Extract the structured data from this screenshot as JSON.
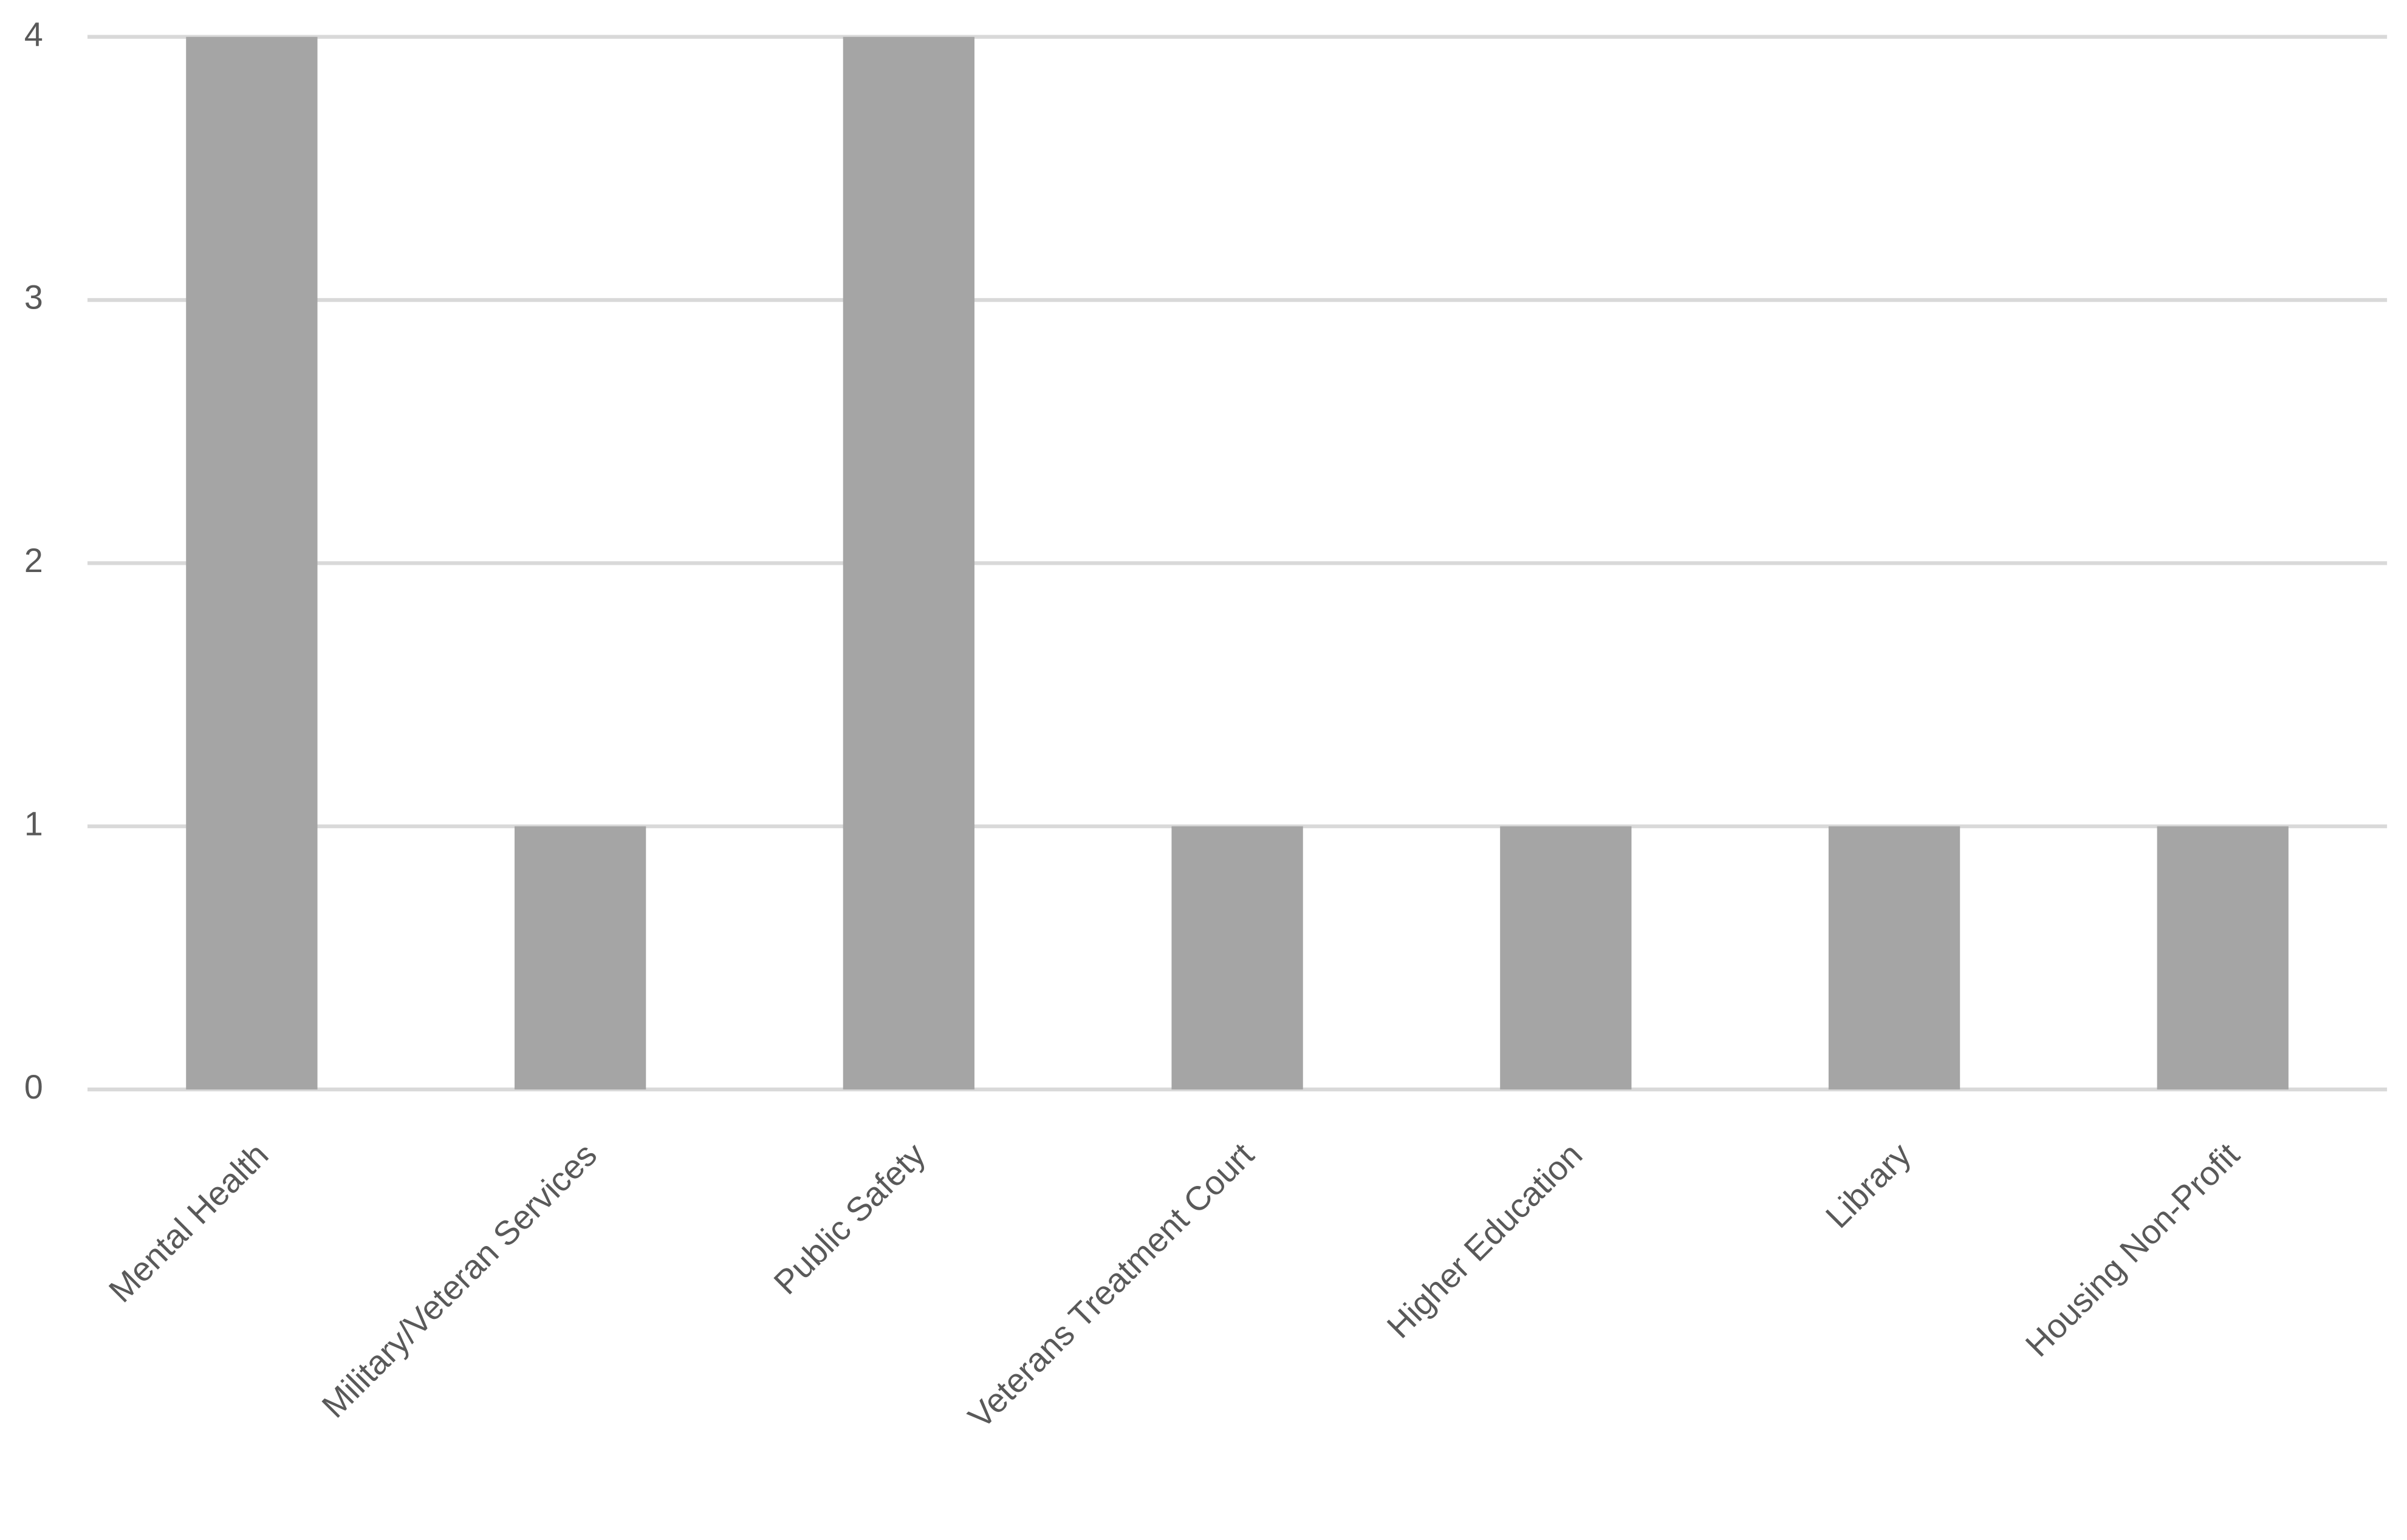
{
  "chart_data": {
    "type": "bar",
    "categories": [
      "Mental Health",
      "Military/Veteran Services",
      "Public Safety",
      "Veterans Treatment Court",
      "Higher Education",
      "Library",
      "Housing Non-Profit"
    ],
    "values": [
      4,
      1,
      4,
      1,
      1,
      1,
      1
    ],
    "color": "#a5a5a5",
    "ylim": [
      0,
      4
    ],
    "yticks": [
      0,
      1,
      2,
      3,
      4
    ],
    "grid": true
  }
}
